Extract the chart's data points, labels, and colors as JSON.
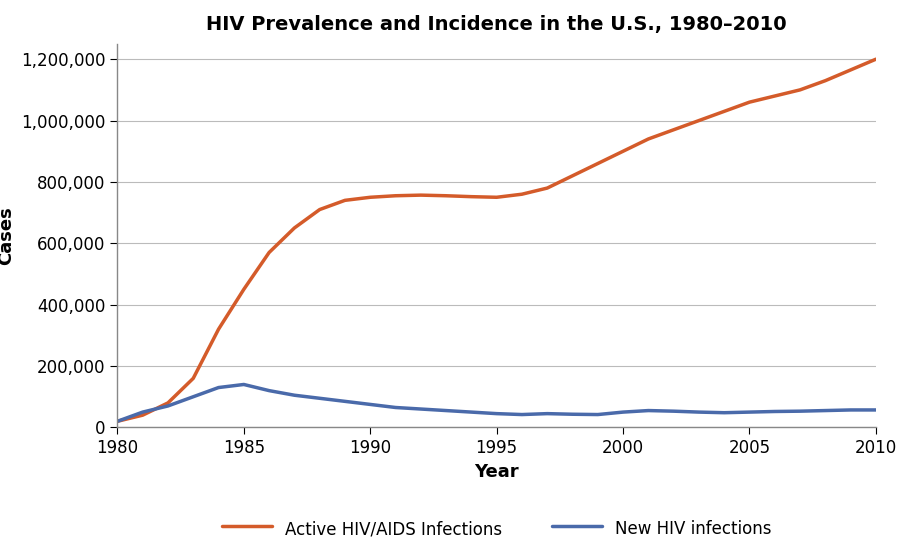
{
  "title": "HIV Prevalence and Incidence in the U.S., 1980–2010",
  "xlabel": "Year",
  "ylabel": "Cases",
  "active_hiv_years": [
    1980,
    1981,
    1982,
    1983,
    1984,
    1985,
    1986,
    1987,
    1988,
    1989,
    1990,
    1991,
    1992,
    1993,
    1994,
    1995,
    1996,
    1997,
    1998,
    1999,
    2000,
    2001,
    2002,
    2003,
    2004,
    2005,
    2006,
    2007,
    2008,
    2009,
    2010
  ],
  "active_hiv_values": [
    20000,
    40000,
    80000,
    160000,
    320000,
    450000,
    570000,
    650000,
    710000,
    740000,
    750000,
    755000,
    757000,
    755000,
    752000,
    750000,
    760000,
    780000,
    820000,
    860000,
    900000,
    940000,
    970000,
    1000000,
    1030000,
    1060000,
    1080000,
    1100000,
    1130000,
    1165000,
    1200000
  ],
  "new_hiv_years": [
    1980,
    1981,
    1982,
    1983,
    1984,
    1985,
    1986,
    1987,
    1988,
    1989,
    1990,
    1991,
    1992,
    1993,
    1994,
    1995,
    1996,
    1997,
    1998,
    1999,
    2000,
    2001,
    2002,
    2003,
    2004,
    2005,
    2006,
    2007,
    2008,
    2009,
    2010
  ],
  "new_hiv_values": [
    20000,
    50000,
    70000,
    100000,
    130000,
    140000,
    120000,
    105000,
    95000,
    85000,
    75000,
    65000,
    60000,
    55000,
    50000,
    45000,
    42000,
    45000,
    43000,
    42000,
    50000,
    55000,
    53000,
    50000,
    48000,
    50000,
    52000,
    53000,
    55000,
    57000,
    57000
  ],
  "active_color": "#d45b2a",
  "new_color": "#4a6aaa",
  "active_label": "Active HIV/AIDS Infections",
  "new_label": "New HIV infections",
  "ylim": [
    0,
    1250000
  ],
  "xlim": [
    1980,
    2010
  ],
  "yticks": [
    0,
    200000,
    400000,
    600000,
    800000,
    1000000,
    1200000
  ],
  "xticks": [
    1980,
    1985,
    1990,
    1995,
    2000,
    2005,
    2010
  ],
  "line_width": 2.5,
  "title_fontsize": 14,
  "axis_label_fontsize": 13,
  "tick_fontsize": 12,
  "legend_fontsize": 12,
  "background_color": "#ffffff",
  "grid_color": "#bbbbbb"
}
